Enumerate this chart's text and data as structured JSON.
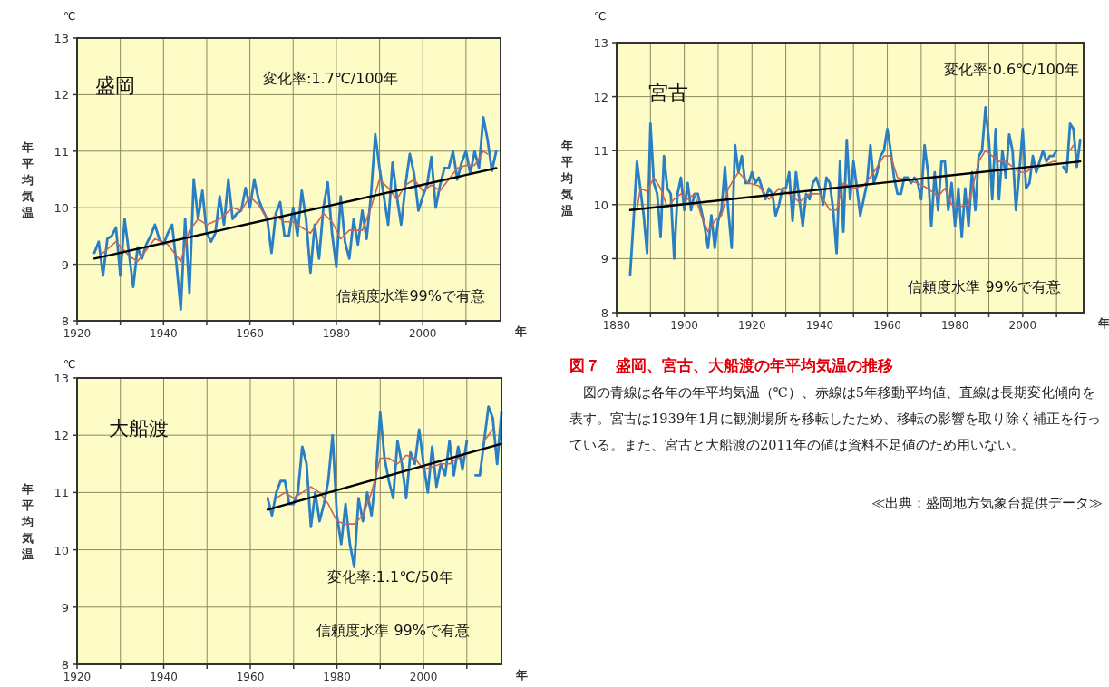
{
  "chart_data": [
    {
      "type": "line",
      "title": "盛岡",
      "xlabel": "年",
      "ylabel": "年平均気温",
      "annotations": [
        "℃",
        "変化率:1.7℃/100年",
        "信頼度水準99%で有意"
      ],
      "xlim": [
        1920,
        2018
      ],
      "ylim": [
        8,
        13
      ],
      "xticks": [
        1920,
        {
          "value": 1930,
          "label": null
        },
        1940,
        {
          "value": 1950,
          "label": null
        },
        1960,
        {
          "value": 1970,
          "label": null
        },
        1980,
        {
          "value": 1990,
          "label": null
        },
        2000,
        {
          "value": 2010,
          "label": null
        }
      ],
      "yticks": [
        8,
        9,
        10,
        11,
        12,
        13
      ],
      "grid": true,
      "series": [
        {
          "color": "#2a7fc4",
          "x": [
            1924,
            1925,
            1926,
            1927,
            1928,
            1929,
            1930,
            1931,
            1932,
            1933,
            1934,
            1935,
            1936,
            1937,
            1938,
            1939,
            1940,
            1941,
            1942,
            1943,
            1944,
            1945,
            1946,
            1947,
            1948,
            1949,
            1950,
            1951,
            1952,
            1953,
            1954,
            1955,
            1956,
            1957,
            1958,
            1959,
            1960,
            1961,
            1962,
            1963,
            1964,
            1965,
            1966,
            1967,
            1968,
            1969,
            1970,
            1971,
            1972,
            1973,
            1974,
            1975,
            1976,
            1977,
            1978,
            1979,
            1980,
            1981,
            1982,
            1983,
            1984,
            1985,
            1986,
            1987,
            1988,
            1989,
            1990,
            1991,
            1992,
            1993,
            1994,
            1995,
            1996,
            1997,
            1998,
            1999,
            2000,
            2001,
            2002,
            2003,
            2004,
            2005,
            2006,
            2007,
            2008,
            2009,
            2010,
            2011,
            2012,
            2013,
            2014,
            2015,
            2016,
            2017
          ],
          "values": [
            9.2,
            9.4,
            8.8,
            9.45,
            9.5,
            9.65,
            8.8,
            9.8,
            9.2,
            8.6,
            9.3,
            9.1,
            9.35,
            9.5,
            9.7,
            9.45,
            9.35,
            9.55,
            9.7,
            9.0,
            8.2,
            9.8,
            8.5,
            10.5,
            9.8,
            10.3,
            9.55,
            9.4,
            9.55,
            10.2,
            9.7,
            10.5,
            9.8,
            9.9,
            9.95,
            10.35,
            10.0,
            10.5,
            10.15,
            9.95,
            9.8,
            9.2,
            9.9,
            10.1,
            9.5,
            9.5,
            10.0,
            9.5,
            10.3,
            9.8,
            8.85,
            9.7,
            9.1,
            10.0,
            10.45,
            9.55,
            8.95,
            10.2,
            9.4,
            9.1,
            9.8,
            9.35,
            9.95,
            9.45,
            10.2,
            11.3,
            10.7,
            10.2,
            9.7,
            10.8,
            10.2,
            9.7,
            10.4,
            10.95,
            10.6,
            9.95,
            10.2,
            10.4,
            10.9,
            10.0,
            10.4,
            10.7,
            10.7,
            11.0,
            10.5,
            10.8,
            11.0,
            10.6,
            11.0,
            10.7,
            11.6,
            11.2,
            10.65,
            11.0
          ]
        },
        {
          "color": "#c8645a",
          "x": [
            1926,
            1929,
            1932,
            1934,
            1938,
            1941,
            1944,
            1946,
            1948,
            1950,
            1953,
            1956,
            1958,
            1960,
            1962,
            1964,
            1966,
            1968,
            1970,
            1972,
            1974,
            1977,
            1979,
            1981,
            1983,
            1986,
            1988,
            1990,
            1992,
            1994,
            1996,
            1998,
            2000,
            2002,
            2004,
            2006,
            2008,
            2010,
            2012,
            2014,
            2015
          ],
          "values": [
            9.2,
            9.4,
            9.15,
            9.05,
            9.45,
            9.35,
            9.05,
            9.6,
            9.8,
            9.7,
            9.8,
            10.0,
            9.95,
            10.2,
            10.05,
            9.8,
            9.85,
            9.75,
            9.75,
            9.65,
            9.55,
            9.9,
            9.75,
            9.45,
            9.6,
            9.6,
            10.0,
            10.5,
            10.35,
            10.15,
            10.4,
            10.5,
            10.3,
            10.4,
            10.3,
            10.5,
            10.7,
            10.75,
            10.75,
            11.0,
            10.95
          ]
        },
        {
          "type": "line",
          "color": "#000000",
          "x": [
            1924,
            2017
          ],
          "values": [
            9.1,
            10.7
          ]
        }
      ]
    },
    {
      "type": "line",
      "title": "宮古",
      "xlabel": "年",
      "ylabel": "年平均気温",
      "annotations": [
        "℃",
        "変化率:0.6℃/100年",
        "信頼度水準 99%で有意"
      ],
      "xlim": [
        1880,
        2018
      ],
      "ylim": [
        8,
        13
      ],
      "xticks": [
        1880,
        {
          "value": 1890,
          "label": null
        },
        1900,
        {
          "value": 1910,
          "label": null
        },
        1920,
        {
          "value": 1930,
          "label": null
        },
        1940,
        {
          "value": 1950,
          "label": null
        },
        1960,
        {
          "value": 1970,
          "label": null
        },
        1980,
        {
          "value": 1990,
          "label": null
        },
        2000,
        {
          "value": 2010,
          "label": null
        }
      ],
      "yticks": [
        8,
        9,
        10,
        11,
        12,
        13
      ],
      "grid": true,
      "series": [
        {
          "color": "#2a7fc4",
          "x": [
            1884,
            1885,
            1886,
            1887,
            1888,
            1889,
            1890,
            1891,
            1892,
            1893,
            1894,
            1895,
            1896,
            1897,
            1898,
            1899,
            1900,
            1901,
            1902,
            1903,
            1904,
            1905,
            1906,
            1907,
            1908,
            1909,
            1910,
            1911,
            1912,
            1913,
            1914,
            1915,
            1916,
            1917,
            1918,
            1919,
            1920,
            1921,
            1922,
            1923,
            1924,
            1925,
            1926,
            1927,
            1928,
            1929,
            1930,
            1931,
            1932,
            1933,
            1934,
            1935,
            1936,
            1937,
            1938,
            1939,
            1940,
            1941,
            1942,
            1943,
            1944,
            1945,
            1946,
            1947,
            1948,
            1949,
            1950,
            1951,
            1952,
            1953,
            1954,
            1955,
            1956,
            1957,
            1958,
            1959,
            1960,
            1961,
            1962,
            1963,
            1964,
            1965,
            1966,
            1967,
            1968,
            1969,
            1970,
            1971,
            1972,
            1973,
            1974,
            1975,
            1976,
            1977,
            1978,
            1979,
            1980,
            1981,
            1982,
            1983,
            1984,
            1985,
            1986,
            1987,
            1988,
            1989,
            1990,
            1991,
            1992,
            1993,
            1994,
            1995,
            1996,
            1997,
            1998,
            1999,
            2000,
            2001,
            2002,
            2003,
            2004,
            2005,
            2006,
            2007,
            2008,
            2009,
            2010,
            2011,
            2012,
            2013,
            2014,
            2015,
            2016,
            2017
          ],
          "values": [
            8.7,
            9.7,
            10.8,
            10.3,
            9.8,
            9.1,
            11.5,
            10.4,
            10.2,
            9.4,
            10.9,
            10.3,
            10.2,
            9.0,
            10.2,
            10.5,
            9.9,
            10.4,
            9.9,
            10.2,
            10.2,
            9.9,
            9.6,
            9.2,
            9.8,
            9.2,
            9.7,
            9.9,
            10.7,
            9.9,
            9.2,
            11.1,
            10.6,
            10.9,
            10.4,
            10.4,
            10.6,
            10.4,
            10.5,
            10.3,
            10.1,
            10.3,
            10.2,
            9.8,
            10.0,
            10.3,
            10.3,
            10.6,
            9.7,
            10.6,
            10.1,
            9.6,
            10.2,
            10.1,
            10.4,
            10.5,
            10.3,
            10.0,
            10.5,
            10.4,
            9.9,
            9.1,
            10.8,
            9.5,
            11.2,
            10.1,
            10.8,
            10.3,
            9.8,
            10.1,
            10.4,
            11.1,
            10.4,
            10.6,
            10.9,
            11.0,
            11.4,
            11.0,
            10.5,
            10.2,
            10.2,
            10.5,
            10.5,
            10.4,
            10.5,
            10.4,
            10.1,
            11.1,
            10.6,
            9.6,
            10.6,
            9.9,
            10.8,
            10.8,
            9.9,
            10.4,
            9.6,
            10.3,
            9.4,
            10.3,
            9.6,
            10.6,
            9.9,
            10.9,
            11.0,
            11.8,
            11.2,
            10.1,
            11.4,
            10.1,
            11.0,
            10.5,
            11.3,
            11.0,
            9.9,
            10.6,
            11.4,
            10.3,
            10.4,
            10.9,
            10.6,
            10.8,
            11.0,
            10.8,
            10.9,
            10.9,
            11.0,
            null,
            10.7,
            10.6,
            11.5,
            11.4,
            10.7,
            11.2
          ]
        },
        {
          "color": "#c8645a",
          "x": [
            1886,
            1887,
            1889,
            1891,
            1893,
            1895,
            1897,
            1899,
            1901,
            1903,
            1905,
            1907,
            1909,
            1911,
            1913,
            1916,
            1919,
            1922,
            1925,
            1928,
            1931,
            1934,
            1937,
            1940,
            1943,
            1945,
            1947,
            1950,
            1953,
            1956,
            1959,
            1961,
            1963,
            1966,
            1969,
            1972,
            1975,
            1977,
            1979,
            1981,
            1984,
            1987,
            1989,
            1991,
            1993,
            1995,
            1997,
            1999,
            2001,
            2003,
            2005,
            2009,
            2010,
            2011,
            2014,
            2015
          ],
          "values": [
            9.9,
            10.3,
            10.25,
            10.5,
            10.3,
            9.95,
            10.1,
            10.2,
            10.1,
            10.2,
            9.8,
            9.5,
            9.7,
            9.8,
            10.3,
            10.6,
            10.4,
            10.35,
            10.1,
            10.3,
            10.2,
            10.05,
            10.2,
            10.2,
            9.9,
            9.9,
            10.4,
            10.3,
            10.35,
            10.6,
            10.9,
            10.9,
            10.5,
            10.45,
            10.4,
            10.3,
            10.15,
            10.3,
            10.0,
            9.95,
            10.0,
            10.8,
            11.0,
            10.9,
            10.8,
            10.8,
            10.7,
            10.6,
            10.6,
            10.7,
            10.7,
            10.8,
            10.8,
            null,
            11.0,
            11.1
          ]
        },
        {
          "type": "line",
          "color": "#000000",
          "x": [
            1884,
            2017
          ],
          "values": [
            9.9,
            10.8
          ]
        }
      ]
    },
    {
      "type": "line",
      "title": "大船渡",
      "xlabel": "年",
      "ylabel": "年平均気温",
      "annotations": [
        "℃",
        "変化率:1.1℃/50年",
        "信頼度水準 99%で有意"
      ],
      "xlim": [
        1920,
        2018
      ],
      "ylim": [
        8,
        13
      ],
      "xticks": [
        1920,
        {
          "value": 1930,
          "label": null
        },
        1940,
        {
          "value": 1950,
          "label": null
        },
        1960,
        {
          "value": 1970,
          "label": null
        },
        1980,
        {
          "value": 1990,
          "label": null
        },
        2000,
        {
          "value": 2010,
          "label": null
        }
      ],
      "yticks": [
        8,
        9,
        10,
        11,
        12,
        13
      ],
      "grid": true,
      "series": [
        {
          "color": "#2a7fc4",
          "x": [
            1964,
            1965,
            1966,
            1967,
            1968,
            1969,
            1970,
            1971,
            1972,
            1973,
            1974,
            1975,
            1976,
            1977,
            1978,
            1979,
            1980,
            1981,
            1982,
            1983,
            1984,
            1985,
            1986,
            1987,
            1988,
            1989,
            1990,
            1991,
            1992,
            1993,
            1994,
            1995,
            1996,
            1997,
            1998,
            1999,
            2000,
            2001,
            2002,
            2003,
            2004,
            2005,
            2006,
            2007,
            2008,
            2009,
            2010,
            2011,
            2012,
            2013,
            2014,
            2015,
            2016,
            2017,
            2018
          ],
          "values": [
            10.9,
            10.6,
            11.0,
            11.2,
            11.2,
            10.8,
            10.8,
            11.0,
            11.8,
            11.5,
            10.4,
            11.0,
            10.5,
            10.8,
            11.2,
            12.0,
            10.6,
            10.1,
            10.8,
            10.1,
            9.7,
            10.9,
            10.5,
            11.0,
            10.6,
            11.3,
            12.4,
            11.6,
            11.2,
            10.9,
            11.9,
            11.5,
            10.9,
            11.7,
            11.5,
            12.1,
            11.5,
            11.0,
            11.8,
            11.1,
            11.5,
            11.3,
            11.9,
            11.3,
            11.8,
            11.4,
            11.9,
            null,
            11.3,
            11.3,
            11.9,
            12.5,
            12.3,
            11.5,
            12.4
          ]
        },
        {
          "color": "#c8645a",
          "x": [
            1966,
            1968,
            1970,
            1972,
            1974,
            1976,
            1978,
            1980,
            1982,
            1984,
            1986,
            1988,
            1990,
            1992,
            1994,
            1996,
            1998,
            2000,
            2002,
            2004,
            2006,
            2008,
            2010,
            2011,
            2014,
            2016
          ],
          "values": [
            10.9,
            11.0,
            10.9,
            11.0,
            11.1,
            11.0,
            10.8,
            10.5,
            10.45,
            10.45,
            10.6,
            11.0,
            11.6,
            11.6,
            11.5,
            11.65,
            11.6,
            11.4,
            11.45,
            11.5,
            11.5,
            11.6,
            11.7,
            null,
            11.9,
            12.1
          ]
        },
        {
          "type": "line",
          "color": "#000000",
          "x": [
            1964,
            2018
          ],
          "values": [
            10.7,
            11.85
          ]
        }
      ]
    },
    {
      "type": "other",
      "title": "図７　盛岡、宮古、大船渡の年平均気温の推移",
      "annotations": [
        "図の青線は各年の年平均気温（℃）、赤線は5年移動平均値、直線は長期変化傾向を表す。宮古は1939年1月に観測場所を移転したため、移転の影響を取り除く補正を行っている。また、宮古と大船渡の2011年の値は資料不足値のため用いない。",
        "≪出典：盛岡地方気象台提供データ≫"
      ]
    }
  ]
}
